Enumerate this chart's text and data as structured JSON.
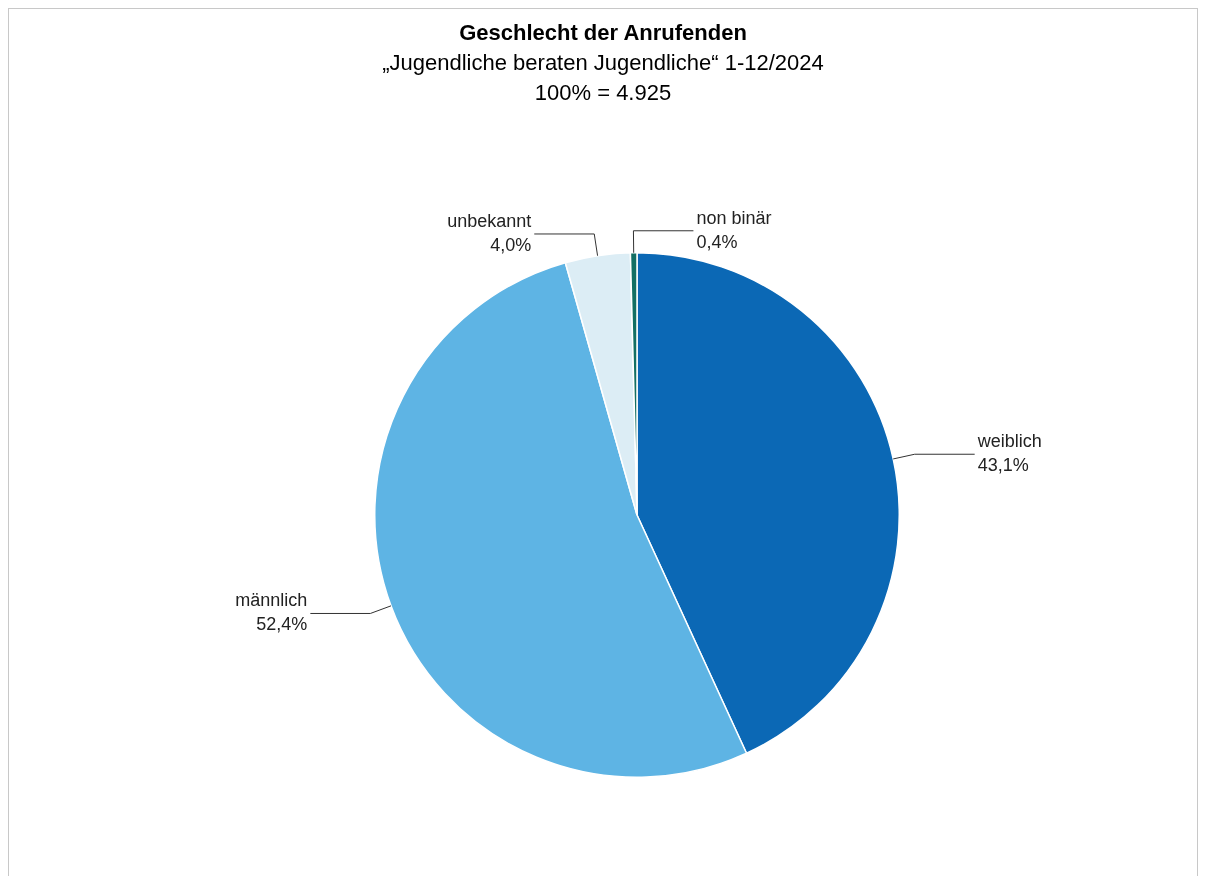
{
  "chart_data": {
    "type": "pie",
    "title": "Geschlecht der Anrufenden",
    "subtitle": "„Jugendliche beraten Jugendliche“ 1-12/2024",
    "annotations": [
      "100% = 4.925"
    ],
    "categories": [
      "weiblich",
      "männlich",
      "unbekannt",
      "non binär"
    ],
    "values": [
      43.1,
      52.4,
      4.0,
      0.4
    ],
    "colors": [
      "#0b68b5",
      "#5eb4e4",
      "#dcedf5",
      "#136f63"
    ],
    "value_labels": [
      "43,1%",
      "52,4%",
      "4,0%",
      "0,4%"
    ],
    "legend": false
  }
}
